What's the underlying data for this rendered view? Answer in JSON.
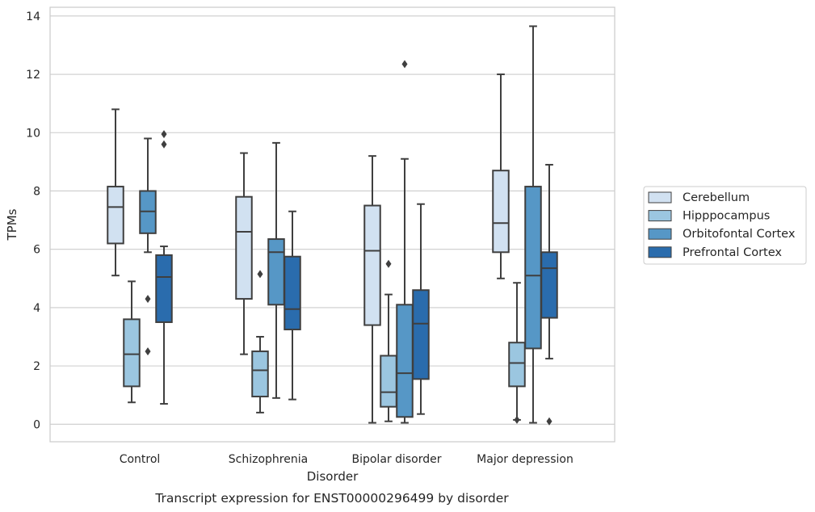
{
  "chart_data": {
    "type": "box",
    "title": "",
    "caption": "Transcript expression for ENST00000296499 by disorder",
    "xlabel": "Disorder",
    "ylabel": "TPMs",
    "ylim": [
      -0.6,
      14.3
    ],
    "yticks": [
      0,
      2,
      4,
      6,
      8,
      10,
      12,
      14
    ],
    "grid": "horizontal",
    "legend_position": "right",
    "categories": [
      "Control",
      "Schizophrenia",
      "Bipolar disorder",
      "Major depression"
    ],
    "series": [
      {
        "name": "Cerebellum",
        "color": "#d1e1f1",
        "boxes": [
          {
            "whisker_low": 5.1,
            "q1": 6.2,
            "median": 7.45,
            "q3": 8.15,
            "whisker_high": 10.8,
            "outliers": []
          },
          {
            "whisker_low": 2.4,
            "q1": 4.3,
            "median": 6.6,
            "q3": 7.8,
            "whisker_high": 9.3,
            "outliers": []
          },
          {
            "whisker_low": 0.05,
            "q1": 3.4,
            "median": 5.95,
            "q3": 7.5,
            "whisker_high": 9.2,
            "outliers": []
          },
          {
            "whisker_low": 5.0,
            "q1": 5.9,
            "median": 6.9,
            "q3": 8.7,
            "whisker_high": 12.0,
            "outliers": []
          }
        ]
      },
      {
        "name": "Hipppocampus",
        "color": "#9bc6e0",
        "boxes": [
          {
            "whisker_low": 0.75,
            "q1": 1.3,
            "median": 2.4,
            "q3": 3.6,
            "whisker_high": 4.9,
            "outliers": []
          },
          {
            "whisker_low": 0.4,
            "q1": 0.95,
            "median": 1.85,
            "q3": 2.5,
            "whisker_high": 3.0,
            "outliers": [
              5.15
            ]
          },
          {
            "whisker_low": 0.1,
            "q1": 0.6,
            "median": 1.1,
            "q3": 2.35,
            "whisker_high": 4.45,
            "outliers": [
              5.5
            ]
          },
          {
            "whisker_low": 0.15,
            "q1": 1.3,
            "median": 2.1,
            "q3": 2.8,
            "whisker_high": 4.85,
            "outliers": [
              0.15
            ]
          }
        ]
      },
      {
        "name": "Orbitofontal Cortex",
        "color": "#5697c6",
        "boxes": [
          {
            "whisker_low": 5.9,
            "q1": 6.55,
            "median": 7.3,
            "q3": 8.0,
            "whisker_high": 9.8,
            "outliers": [
              4.3,
              2.5
            ]
          },
          {
            "whisker_low": 0.9,
            "q1": 4.1,
            "median": 5.9,
            "q3": 6.35,
            "whisker_high": 9.65,
            "outliers": []
          },
          {
            "whisker_low": 0.05,
            "q1": 0.25,
            "median": 1.75,
            "q3": 4.1,
            "whisker_high": 9.1,
            "outliers": [
              12.35
            ]
          },
          {
            "whisker_low": 0.05,
            "q1": 2.6,
            "median": 5.1,
            "q3": 8.15,
            "whisker_high": 13.65,
            "outliers": []
          }
        ]
      },
      {
        "name": "Prefrontal Cortex",
        "color": "#2a6cad",
        "boxes": [
          {
            "whisker_low": 0.7,
            "q1": 3.5,
            "median": 5.05,
            "q3": 5.8,
            "whisker_high": 6.1,
            "outliers": [
              9.95,
              9.6
            ]
          },
          {
            "whisker_low": 0.85,
            "q1": 3.25,
            "median": 3.95,
            "q3": 5.75,
            "whisker_high": 7.3,
            "outliers": []
          },
          {
            "whisker_low": 0.35,
            "q1": 1.55,
            "median": 3.45,
            "q3": 4.6,
            "whisker_high": 7.55,
            "outliers": []
          },
          {
            "whisker_low": 2.25,
            "q1": 3.65,
            "median": 5.35,
            "q3": 5.9,
            "whisker_high": 8.9,
            "outliers": [
              0.1
            ]
          }
        ]
      }
    ]
  }
}
